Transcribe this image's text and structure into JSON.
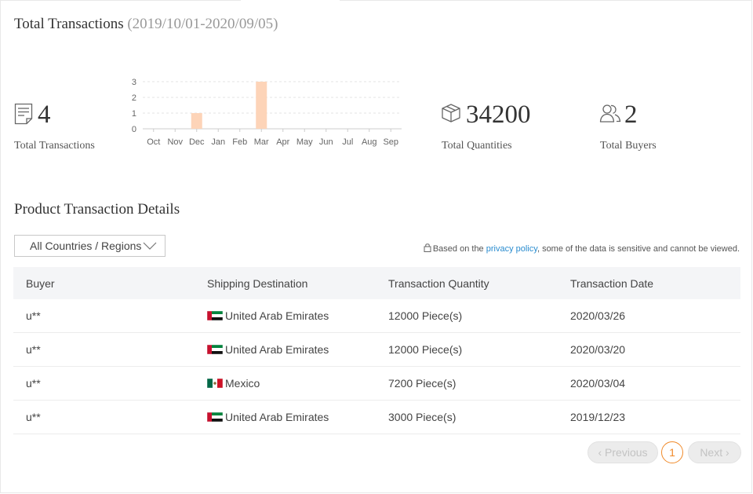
{
  "header": {
    "title": "Total Transactions",
    "date_range": "(2019/10/01-2020/09/05)"
  },
  "stats": {
    "transactions": {
      "value": "4",
      "label": "Total Transactions",
      "icon": "document-icon"
    },
    "quantities": {
      "value": "34200",
      "label": "Total Quantities",
      "icon": "box-icon"
    },
    "buyers": {
      "value": "2",
      "label": "Total Buyers",
      "icon": "users-icon"
    }
  },
  "chart_data": {
    "type": "bar",
    "categories": [
      "Oct",
      "Nov",
      "Dec",
      "Jan",
      "Feb",
      "Mar",
      "Apr",
      "May",
      "Jun",
      "Jul",
      "Aug",
      "Sep"
    ],
    "values": [
      0,
      0,
      1,
      0,
      0,
      3,
      0,
      0,
      0,
      0,
      0,
      0
    ],
    "yticks": [
      0,
      1,
      2,
      3
    ],
    "ylim": [
      0,
      3
    ],
    "bar_color": "#fdd4b8",
    "grid": true
  },
  "details": {
    "title": "Product Transaction Details",
    "region_select": "All Countries / Regions",
    "privacy_prefix": "Based on the ",
    "privacy_link": "privacy policy",
    "privacy_suffix": ", some of the data is sensitive and cannot be viewed."
  },
  "table": {
    "columns": [
      "Buyer",
      "Shipping Destination",
      "Transaction Quantity",
      "Transaction Date"
    ],
    "rows": [
      {
        "buyer": "u**",
        "flag": "uae",
        "destination": "United Arab Emirates",
        "quantity": "12000 Piece(s)",
        "date": "2020/03/26"
      },
      {
        "buyer": "u**",
        "flag": "uae",
        "destination": "United Arab Emirates",
        "quantity": "12000 Piece(s)",
        "date": "2020/03/20"
      },
      {
        "buyer": "u**",
        "flag": "mexico",
        "destination": "Mexico",
        "quantity": "7200 Piece(s)",
        "date": "2020/03/04"
      },
      {
        "buyer": "u**",
        "flag": "uae",
        "destination": "United Arab Emirates",
        "quantity": "3000 Piece(s)",
        "date": "2019/12/23"
      }
    ]
  },
  "pagination": {
    "previous": "Previous",
    "current_page": "1",
    "next": "Next",
    "accent": "#f08a2a"
  }
}
